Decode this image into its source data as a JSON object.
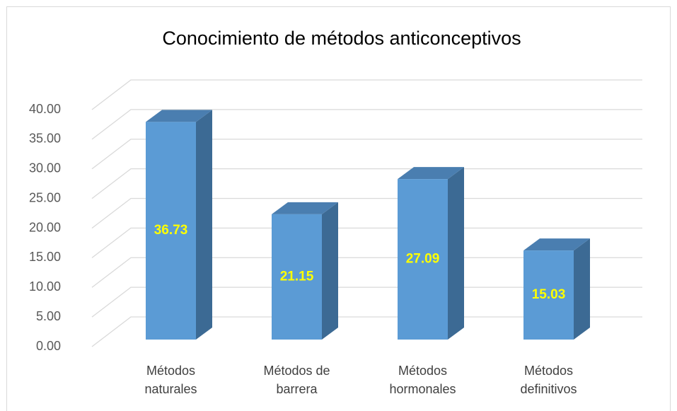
{
  "chart_data": {
    "type": "bar3d",
    "title": "Conocimiento de métodos anticonceptivos",
    "categories": [
      "Métodos naturales",
      "Métodos de barrera",
      "Métodos hormonales",
      "Métodos definitivos"
    ],
    "values": [
      36.73,
      21.15,
      27.09,
      15.03
    ],
    "color": "#5b9bd5",
    "ylim": [
      0,
      40
    ],
    "yticks": [
      {
        "value": 0,
        "label": "0.00"
      },
      {
        "value": 5,
        "label": "5.00"
      },
      {
        "value": 10,
        "label": "10.00"
      },
      {
        "value": 15,
        "label": "15.00"
      },
      {
        "value": 20,
        "label": "20.00"
      },
      {
        "value": 25,
        "label": "25.00"
      },
      {
        "value": 30,
        "label": "30.00"
      },
      {
        "value": 35,
        "label": "35.00"
      },
      {
        "value": 40,
        "label": "40.00"
      }
    ],
    "grid": true
  }
}
